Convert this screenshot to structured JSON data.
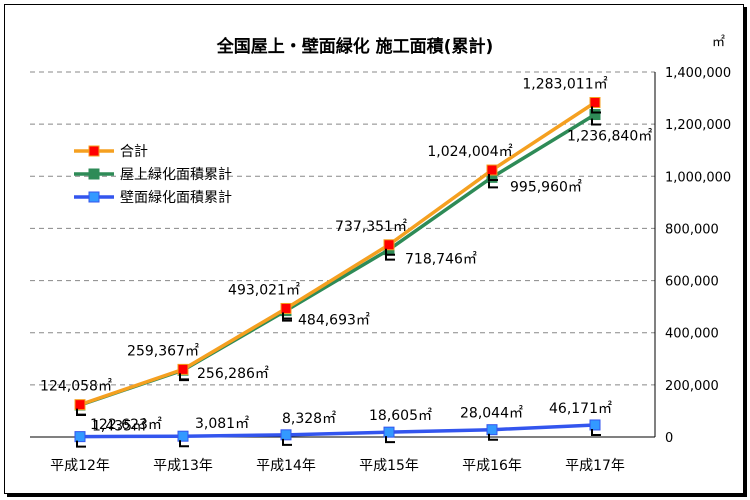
{
  "chart_data": {
    "type": "line",
    "title": "全国屋上・壁面緑化 施工面積(累計)",
    "unit": "㎡",
    "categories": [
      "平成12年",
      "平成13年",
      "平成14年",
      "平成15年",
      "平成16年",
      "平成17年"
    ],
    "ylim": [
      0,
      1400000
    ],
    "yticks": [
      "0",
      "200,000",
      "400,000",
      "600,000",
      "800,000",
      "1,000,000",
      "1,200,000",
      "1,400,000"
    ],
    "grid": true,
    "legend_position": "top-left",
    "series": [
      {
        "name": "合計",
        "values": [
          124058,
          259367,
          493021,
          737351,
          1024004,
          1283011
        ],
        "labels": [
          "124,058㎡",
          "259,367㎡",
          "493,021㎡",
          "737,351㎡",
          "1,024,004㎡",
          "1,283,011㎡"
        ],
        "line_color": "#f5a020",
        "marker_color": "#ff0000"
      },
      {
        "name": "屋上緑化面積累計",
        "values": [
          122623,
          256286,
          484693,
          718746,
          995960,
          1236840
        ],
        "labels": [
          "122,623㎡",
          "256,286㎡",
          "484,693㎡",
          "718,746㎡",
          "995,960㎡",
          "1,236,840㎡"
        ],
        "line_color": "#2e8b57",
        "marker_color": "#2e8b57"
      },
      {
        "name": "壁面緑化面積累計",
        "values": [
          1435,
          3081,
          8328,
          18605,
          28044,
          46171
        ],
        "labels": [
          "1,435㎡",
          "3,081㎡",
          "8,328㎡",
          "18,605㎡",
          "28,044㎡",
          "46,171㎡"
        ],
        "line_color": "#3355ee",
        "marker_color": "#3399ff"
      }
    ]
  }
}
